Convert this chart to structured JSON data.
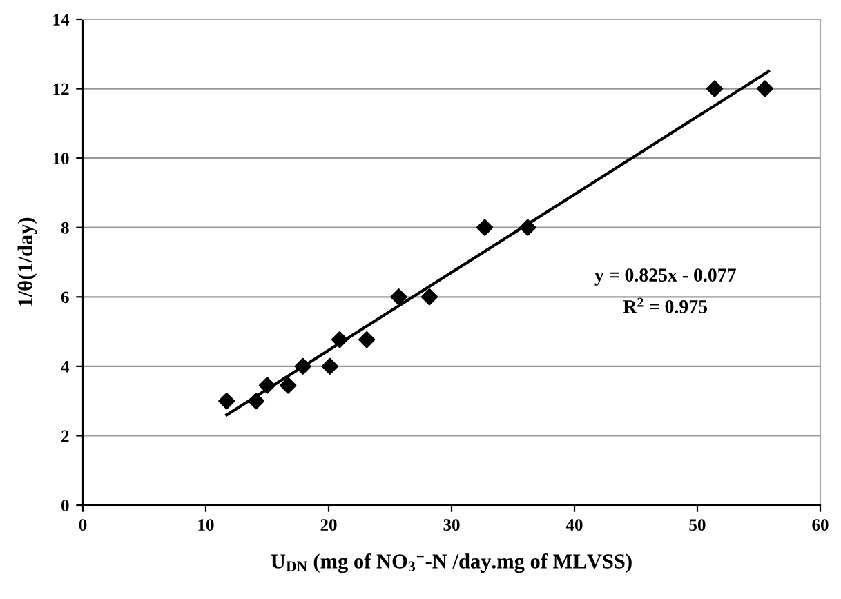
{
  "chart_data": {
    "type": "scatter",
    "xlabel": "U$_{DN}$ (mg of NO$_{3}$$^{−}$-N /day.mg of MLVSS)",
    "ylabel": "1/θ(1/day)",
    "series": [
      {
        "color": "#000000",
        "marker": "diamond",
        "x": [
          11.7,
          14.1,
          15.0,
          16.7,
          17.9,
          20.1,
          20.9,
          23.1,
          25.7,
          28.2,
          32.7,
          36.2,
          51.4,
          55.5
        ],
        "values": [
          3,
          3,
          3.45,
          3.45,
          4,
          4,
          4.77,
          4.77,
          6,
          6,
          8,
          8,
          12,
          12
        ]
      },
      {
        "type": "line",
        "color": "#000000",
        "marker": "none",
        "line_style": "solid",
        "x": [
          11.7,
          55.8
        ],
        "values": [
          2.6,
          12.5
        ]
      }
    ],
    "annotations": [
      "y = 0.825x - 0.077",
      "R$^{2}$ = 0.975"
    ],
    "xlim": [
      0,
      60
    ],
    "xticks": [
      0,
      10,
      20,
      30,
      40,
      50,
      60
    ],
    "ylim": [
      0,
      14
    ],
    "yticks": [
      0,
      2,
      4,
      6,
      8,
      10,
      12,
      14
    ],
    "grid": "y",
    "legend": false
  }
}
